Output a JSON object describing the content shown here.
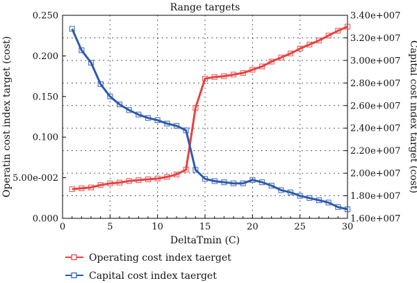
{
  "chart_data": {
    "type": "line",
    "title": "Range targets",
    "xlabel": "DeltaTmin (C)",
    "ylabel_left": "Operatin cost index target (cost)",
    "ylabel_right": "Capital cost index target (cost)",
    "xlim": [
      0,
      30
    ],
    "ylim_left": [
      0,
      0.25
    ],
    "ylim_right": [
      16000000,
      34000000
    ],
    "x_ticks": [
      {
        "value": 0,
        "label": "0"
      },
      {
        "value": 5,
        "label": "5"
      },
      {
        "value": 10,
        "label": "10"
      },
      {
        "value": 15,
        "label": "15"
      },
      {
        "value": 20,
        "label": "20"
      },
      {
        "value": 25,
        "label": "25"
      },
      {
        "value": 30,
        "label": "30"
      }
    ],
    "y_left_ticks": [
      {
        "value": 0,
        "label": "0.000"
      },
      {
        "value": 0.05,
        "label": "5.00e-002"
      },
      {
        "value": 0.1,
        "label": "0.100"
      },
      {
        "value": 0.15,
        "label": "0.150"
      },
      {
        "value": 0.2,
        "label": "0.200"
      },
      {
        "value": 0.25,
        "label": "0.250"
      }
    ],
    "y_right_ticks": [
      {
        "value": 16000000,
        "label": "1.60e+007"
      },
      {
        "value": 18000000,
        "label": "1.80e+007"
      },
      {
        "value": 20000000,
        "label": "2.00e+007"
      },
      {
        "value": 22000000,
        "label": "2.20e+007"
      },
      {
        "value": 24000000,
        "label": "2.40e+007"
      },
      {
        "value": 26000000,
        "label": "2.60e+007"
      },
      {
        "value": 28000000,
        "label": "2.80e+007"
      },
      {
        "value": 30000000,
        "label": "3.00e+007"
      },
      {
        "value": 32000000,
        "label": "3.20e+007"
      },
      {
        "value": 34000000,
        "label": "3.40e+007"
      }
    ],
    "grid": true,
    "legend_position": "bottom-left, below plot",
    "series": [
      {
        "name": "Operating cost index taerget",
        "axis": "left",
        "color": "#e8413e",
        "marker": "square",
        "x": [
          1,
          2,
          3,
          4,
          5,
          6,
          7,
          8,
          9,
          10,
          11,
          12,
          13,
          14,
          15,
          16,
          17,
          18,
          19,
          20,
          21,
          22,
          23,
          24,
          25,
          26,
          27,
          28,
          29,
          30
        ],
        "values": [
          0.036,
          0.037,
          0.038,
          0.041,
          0.043,
          0.044,
          0.046,
          0.047,
          0.048,
          0.049,
          0.051,
          0.054,
          0.06,
          0.136,
          0.172,
          0.174,
          0.175,
          0.177,
          0.179,
          0.183,
          0.187,
          0.193,
          0.198,
          0.203,
          0.209,
          0.214,
          0.219,
          0.225,
          0.231,
          0.236
        ]
      },
      {
        "name": "Capital cost index taerget",
        "axis": "right",
        "color": "#2c5aad",
        "marker": "square",
        "x": [
          1,
          2,
          3,
          4,
          5,
          6,
          7,
          8,
          9,
          10,
          11,
          12,
          13,
          14,
          15,
          16,
          17,
          18,
          19,
          20,
          21,
          22,
          23,
          24,
          25,
          26,
          27,
          28,
          29,
          30
        ],
        "values": [
          32800000,
          30900000,
          29800000,
          27900000,
          26800000,
          26100000,
          25600000,
          25200000,
          24900000,
          24700000,
          24400000,
          24200000,
          23800000,
          20300000,
          19500000,
          19300000,
          19200000,
          19100000,
          19100000,
          19400000,
          19200000,
          18900000,
          18500000,
          18300000,
          18000000,
          17800000,
          17600000,
          17400000,
          17000000,
          16800000
        ]
      }
    ]
  }
}
